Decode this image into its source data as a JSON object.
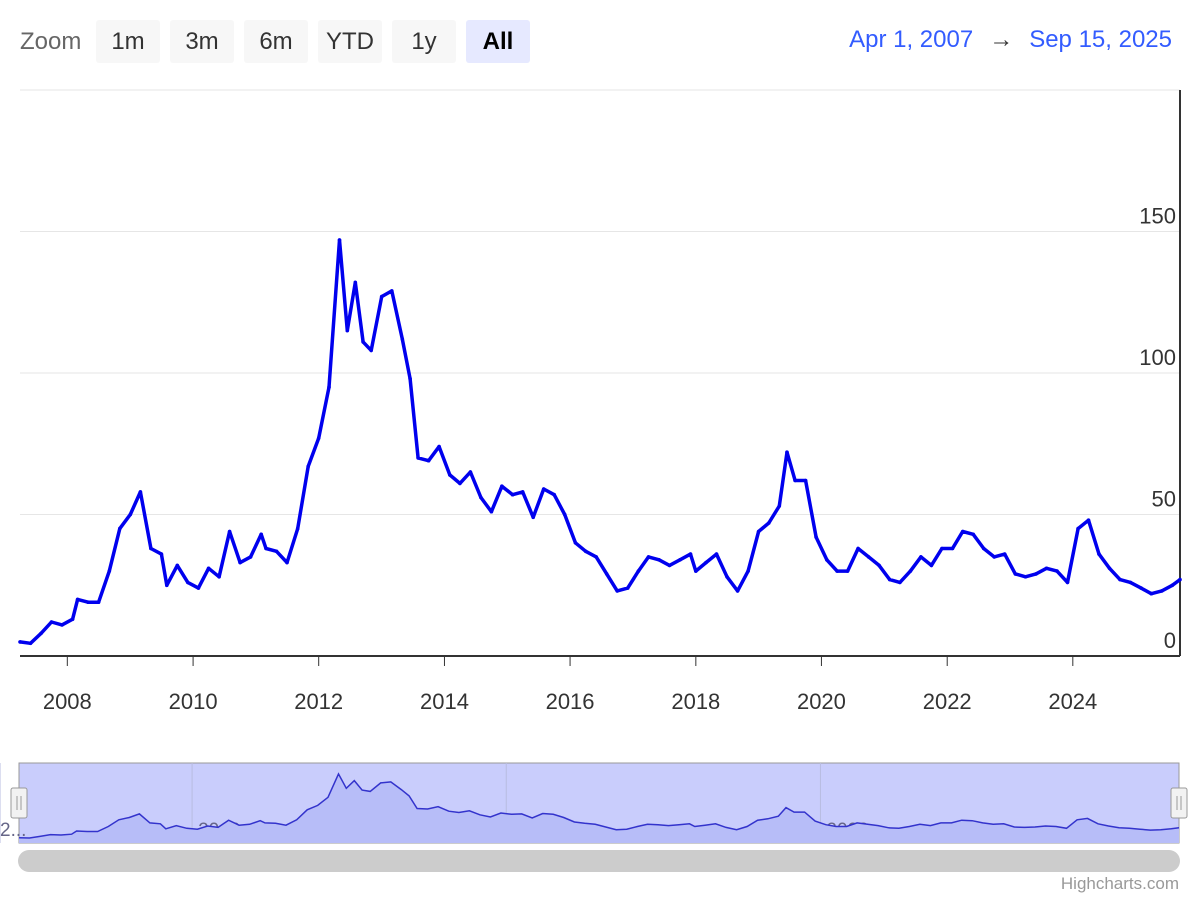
{
  "toolbar": {
    "zoom_label": "Zoom",
    "buttons": [
      "1m",
      "3m",
      "6m",
      "YTD",
      "1y",
      "All"
    ],
    "active_button": "All",
    "range_from": "Apr 1, 2007",
    "range_arrow": "→",
    "range_to": "Sep 15, 2025"
  },
  "colors": {
    "series": "#0000ee",
    "navigator_fill": "#c9cdfc",
    "navigator_line": "#3333cc",
    "grid": "#e6e6e6",
    "accent": "#335cff"
  },
  "credits": "Highcharts.com",
  "chart_data": {
    "type": "line",
    "title": "",
    "xlabel": "",
    "ylabel": "",
    "x_range": [
      "2007-04-01",
      "2025-09-15"
    ],
    "ylim": [
      0,
      200
    ],
    "y_ticks": [
      0,
      50,
      100,
      150
    ],
    "y_tick_labels": [
      "0",
      "50",
      "100",
      "150"
    ],
    "x_ticks": [
      "2008",
      "2010",
      "2012",
      "2014",
      "2016",
      "2018",
      "2020",
      "2022",
      "2024"
    ],
    "navigator_ticks": [
      "2010",
      "2015",
      "2020",
      "2..."
    ],
    "grid": true,
    "legend": "none",
    "series": [
      {
        "values": [
          [
            "2007-04-01",
            5
          ],
          [
            "2007-06-01",
            4.5
          ],
          [
            "2007-08-01",
            8
          ],
          [
            "2007-10-01",
            12
          ],
          [
            "2007-12-01",
            11
          ],
          [
            "2008-02-01",
            13
          ],
          [
            "2008-03-01",
            20
          ],
          [
            "2008-05-01",
            19
          ],
          [
            "2008-07-01",
            19
          ],
          [
            "2008-09-01",
            30
          ],
          [
            "2008-11-01",
            45
          ],
          [
            "2009-01-01",
            50
          ],
          [
            "2009-03-01",
            58
          ],
          [
            "2009-05-01",
            38
          ],
          [
            "2009-07-01",
            36
          ],
          [
            "2009-08-01",
            25
          ],
          [
            "2009-10-01",
            32
          ],
          [
            "2009-12-01",
            26
          ],
          [
            "2010-02-01",
            24
          ],
          [
            "2010-04-01",
            31
          ],
          [
            "2010-06-01",
            28
          ],
          [
            "2010-08-01",
            44
          ],
          [
            "2010-10-01",
            33
          ],
          [
            "2010-12-01",
            35
          ],
          [
            "2011-02-01",
            43
          ],
          [
            "2011-03-01",
            38
          ],
          [
            "2011-05-01",
            37
          ],
          [
            "2011-07-01",
            33
          ],
          [
            "2011-09-01",
            45
          ],
          [
            "2011-11-01",
            67
          ],
          [
            "2012-01-01",
            77
          ],
          [
            "2012-03-01",
            95
          ],
          [
            "2012-05-01",
            147
          ],
          [
            "2012-06-15",
            115
          ],
          [
            "2012-08-01",
            132
          ],
          [
            "2012-09-15",
            111
          ],
          [
            "2012-11-01",
            108
          ],
          [
            "2013-01-01",
            127
          ],
          [
            "2013-03-01",
            129
          ],
          [
            "2013-05-01",
            112
          ],
          [
            "2013-06-15",
            98
          ],
          [
            "2013-08-01",
            70
          ],
          [
            "2013-10-01",
            69
          ],
          [
            "2013-12-01",
            74
          ],
          [
            "2014-02-01",
            64
          ],
          [
            "2014-04-01",
            61
          ],
          [
            "2014-06-01",
            65
          ],
          [
            "2014-08-01",
            56
          ],
          [
            "2014-10-01",
            51
          ],
          [
            "2014-12-01",
            60
          ],
          [
            "2015-02-01",
            57
          ],
          [
            "2015-04-01",
            58
          ],
          [
            "2015-06-01",
            49
          ],
          [
            "2015-08-01",
            59
          ],
          [
            "2015-10-01",
            57
          ],
          [
            "2015-12-01",
            50
          ],
          [
            "2016-02-01",
            40
          ],
          [
            "2016-04-01",
            37
          ],
          [
            "2016-06-01",
            35
          ],
          [
            "2016-08-01",
            29
          ],
          [
            "2016-10-01",
            23
          ],
          [
            "2016-12-01",
            24
          ],
          [
            "2017-02-01",
            30
          ],
          [
            "2017-04-01",
            35
          ],
          [
            "2017-06-01",
            34
          ],
          [
            "2017-08-01",
            32
          ],
          [
            "2017-10-01",
            34
          ],
          [
            "2017-12-01",
            36
          ],
          [
            "2018-01-01",
            30
          ],
          [
            "2018-03-01",
            33
          ],
          [
            "2018-05-01",
            36
          ],
          [
            "2018-07-01",
            28
          ],
          [
            "2018-09-01",
            23
          ],
          [
            "2018-11-01",
            30
          ],
          [
            "2019-01-01",
            44
          ],
          [
            "2019-03-01",
            47
          ],
          [
            "2019-05-01",
            53
          ],
          [
            "2019-06-15",
            72
          ],
          [
            "2019-08-01",
            62
          ],
          [
            "2019-10-01",
            62
          ],
          [
            "2019-12-01",
            42
          ],
          [
            "2020-02-01",
            34
          ],
          [
            "2020-04-01",
            30
          ],
          [
            "2020-06-01",
            30
          ],
          [
            "2020-08-01",
            38
          ],
          [
            "2020-10-01",
            35
          ],
          [
            "2020-12-01",
            32
          ],
          [
            "2021-02-01",
            27
          ],
          [
            "2021-04-01",
            26
          ],
          [
            "2021-06-01",
            30
          ],
          [
            "2021-08-01",
            35
          ],
          [
            "2021-10-01",
            32
          ],
          [
            "2021-12-01",
            38
          ],
          [
            "2022-02-01",
            38
          ],
          [
            "2022-04-01",
            44
          ],
          [
            "2022-06-01",
            43
          ],
          [
            "2022-08-01",
            38
          ],
          [
            "2022-10-01",
            35
          ],
          [
            "2022-12-01",
            36
          ],
          [
            "2023-02-01",
            29
          ],
          [
            "2023-04-01",
            28
          ],
          [
            "2023-06-01",
            29
          ],
          [
            "2023-08-01",
            31
          ],
          [
            "2023-10-01",
            30
          ],
          [
            "2023-12-01",
            26
          ],
          [
            "2024-02-01",
            45
          ],
          [
            "2024-04-01",
            48
          ],
          [
            "2024-06-01",
            36
          ],
          [
            "2024-08-01",
            31
          ],
          [
            "2024-10-01",
            27
          ],
          [
            "2024-12-01",
            26
          ],
          [
            "2025-02-01",
            24
          ],
          [
            "2025-04-01",
            22
          ],
          [
            "2025-06-01",
            23
          ],
          [
            "2025-08-01",
            25
          ],
          [
            "2025-09-15",
            27
          ]
        ]
      }
    ]
  }
}
